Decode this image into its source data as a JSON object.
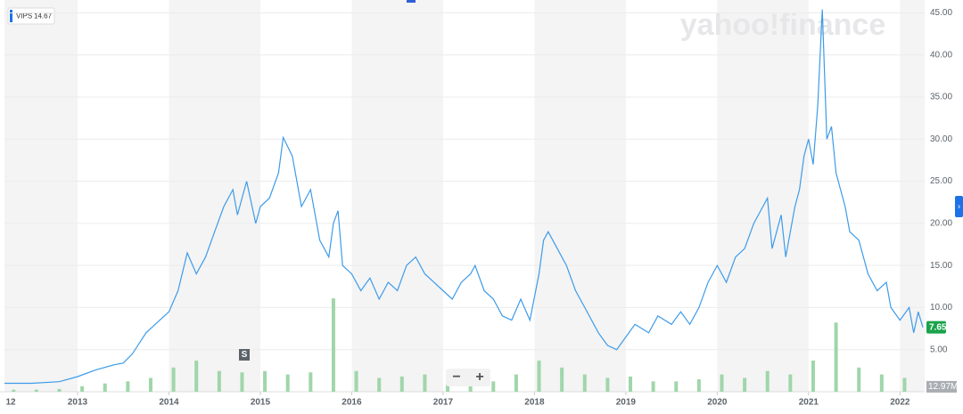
{
  "chart_data": {
    "type": "line",
    "watermark": "yahoo!finance",
    "symbol": "VIPS",
    "legend_value": 14.67,
    "last_price": 7.65,
    "last_volume": {
      "value": 12.97,
      "label": "12.97M"
    },
    "event_marker": "S",
    "zoom_out": "−",
    "zoom_in": "+",
    "color": "#3d9be9",
    "grid": true,
    "xlim": [
      2012.2,
      2022.27
    ],
    "xticks": [
      {
        "value": 2012,
        "label": "12"
      },
      2013,
      2014,
      2015,
      2016,
      2017,
      2018,
      2019,
      2020,
      2021,
      2022
    ],
    "ylim": [
      0,
      46
    ],
    "yticks": [
      {
        "value": 5,
        "label": "5.00"
      },
      {
        "value": 10,
        "label": "10.00"
      },
      {
        "value": 15,
        "label": "15.00"
      },
      {
        "value": 20,
        "label": "20.00"
      },
      {
        "value": 25,
        "label": "25.00"
      },
      {
        "value": 30,
        "label": "30.00"
      },
      {
        "value": 35,
        "label": "35.00"
      },
      {
        "value": 40,
        "label": "40.00"
      },
      {
        "value": 45,
        "label": "45.00"
      }
    ],
    "x": [
      2012.2,
      2012.5,
      2012.8,
      2013.0,
      2013.2,
      2013.4,
      2013.5,
      2013.6,
      2013.75,
      2013.9,
      2014.0,
      2014.1,
      2014.2,
      2014.3,
      2014.4,
      2014.5,
      2014.6,
      2014.7,
      2014.75,
      2014.85,
      2014.95,
      2015.0,
      2015.1,
      2015.2,
      2015.25,
      2015.35,
      2015.45,
      2015.55,
      2015.65,
      2015.75,
      2015.8,
      2015.85,
      2015.9,
      2016.0,
      2016.1,
      2016.2,
      2016.3,
      2016.4,
      2016.5,
      2016.6,
      2016.7,
      2016.8,
      2016.9,
      2017.0,
      2017.1,
      2017.2,
      2017.3,
      2017.35,
      2017.45,
      2017.55,
      2017.65,
      2017.75,
      2017.85,
      2017.95,
      2018.05,
      2018.1,
      2018.15,
      2018.25,
      2018.35,
      2018.45,
      2018.55,
      2018.7,
      2018.8,
      2018.9,
      2019.0,
      2019.1,
      2019.25,
      2019.35,
      2019.5,
      2019.6,
      2019.7,
      2019.8,
      2019.9,
      2020.0,
      2020.1,
      2020.2,
      2020.3,
      2020.4,
      2020.5,
      2020.55,
      2020.6,
      2020.7,
      2020.75,
      2020.85,
      2020.9,
      2020.95,
      2021.0,
      2021.05,
      2021.1,
      2021.15,
      2021.2,
      2021.25,
      2021.3,
      2021.4,
      2021.45,
      2021.55,
      2021.65,
      2021.75,
      2021.85,
      2021.9,
      2022.0,
      2022.1,
      2022.15,
      2022.2,
      2022.25
    ],
    "values": [
      1.0,
      1.0,
      1.2,
      1.8,
      2.6,
      3.2,
      3.4,
      4.5,
      7.0,
      8.5,
      9.5,
      12,
      16.5,
      14,
      16,
      19,
      22,
      24,
      21,
      25,
      20,
      22,
      23,
      26,
      30.2,
      28,
      22,
      24,
      18,
      16,
      20,
      21.5,
      15,
      14,
      12,
      13.5,
      11,
      13,
      12,
      15,
      16,
      14,
      13,
      12,
      11,
      13,
      14,
      15,
      12,
      11,
      9,
      8.5,
      11,
      8.5,
      14,
      18,
      19,
      17,
      15,
      12,
      10,
      7,
      5.5,
      5,
      6.5,
      8,
      7,
      9,
      8,
      9.5,
      8,
      10,
      13,
      15,
      13,
      16,
      17,
      20,
      22,
      23,
      17,
      21,
      16,
      22,
      24,
      28,
      30,
      27,
      34,
      45.4,
      30,
      31.5,
      26,
      22,
      19,
      18,
      14,
      12,
      13,
      10,
      8.5,
      10,
      7,
      9.5,
      7.65
    ],
    "volume": {
      "color": "#9fd6aa",
      "y2lim": [
        0,
        560
      ],
      "x": [
        2012.3,
        2012.55,
        2012.8,
        2013.05,
        2013.3,
        2013.55,
        2013.8,
        2014.05,
        2014.3,
        2014.55,
        2014.8,
        2015.05,
        2015.3,
        2015.55,
        2015.8,
        2016.05,
        2016.3,
        2016.55,
        2016.8,
        2017.05,
        2017.3,
        2017.55,
        2017.8,
        2018.05,
        2018.3,
        2018.55,
        2018.8,
        2019.05,
        2019.3,
        2019.55,
        2019.8,
        2020.05,
        2020.3,
        2020.55,
        2020.8,
        2021.05,
        2021.3,
        2021.55,
        2021.8,
        2022.05
      ],
      "values": [
        3,
        3,
        4,
        8,
        12,
        15,
        20,
        35,
        45,
        30,
        28,
        30,
        25,
        28,
        135,
        30,
        20,
        22,
        25,
        18,
        20,
        15,
        25,
        45,
        35,
        25,
        20,
        22,
        15,
        15,
        18,
        25,
        20,
        30,
        25,
        45,
        100,
        35,
        25,
        20
      ]
    }
  }
}
